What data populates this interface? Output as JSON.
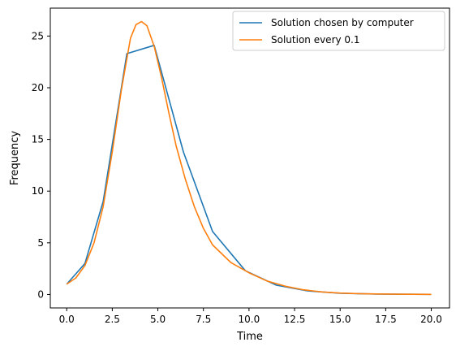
{
  "chart_data": {
    "type": "line",
    "title": "",
    "xlabel": "Time",
    "ylabel": "Frequency",
    "xlim": [
      -0.9,
      21.0
    ],
    "ylim": [
      -1.3,
      27.7
    ],
    "grid": false,
    "legend_position": "top-right",
    "xticks": [
      0.0,
      2.5,
      5.0,
      7.5,
      10.0,
      12.5,
      15.0,
      17.5,
      20.0
    ],
    "xtick_labels": [
      "0.0",
      "2.5",
      "5.0",
      "7.5",
      "10.0",
      "12.5",
      "15.0",
      "17.5",
      "20.0"
    ],
    "yticks": [
      0,
      5,
      10,
      15,
      20,
      25
    ],
    "ytick_labels": [
      "0",
      "5",
      "10",
      "15",
      "20",
      "25"
    ],
    "series": [
      {
        "name": "Solution chosen by computer",
        "color": "#1f77b4",
        "x": [
          0.0,
          0.2,
          0.6,
          1.0,
          2.0,
          3.3,
          4.8,
          6.4,
          8.0,
          9.8,
          11.5,
          13.2,
          15.0,
          17.0,
          20.0
        ],
        "y": [
          1.0,
          1.4,
          2.2,
          3.0,
          9.0,
          23.3,
          24.1,
          13.8,
          6.1,
          2.3,
          0.9,
          0.35,
          0.12,
          0.04,
          0.01
        ]
      },
      {
        "name": "Solution every 0.1",
        "color": "#ff7f0e",
        "x": [
          0.0,
          0.5,
          1.0,
          1.5,
          2.0,
          2.5,
          3.0,
          3.5,
          3.8,
          4.1,
          4.4,
          4.8,
          5.2,
          5.6,
          6.0,
          6.5,
          7.0,
          7.5,
          8.0,
          9.0,
          10.0,
          11.0,
          12.0,
          13.0,
          14.0,
          15.0,
          16.0,
          17.0,
          18.0,
          19.0,
          20.0
        ],
        "y": [
          1.0,
          1.6,
          2.8,
          5.0,
          8.5,
          13.8,
          19.8,
          24.8,
          26.1,
          26.4,
          26.0,
          24.0,
          21.0,
          17.6,
          14.4,
          11.2,
          8.5,
          6.4,
          4.8,
          3.1,
          2.1,
          1.3,
          0.8,
          0.45,
          0.25,
          0.14,
          0.08,
          0.05,
          0.03,
          0.02,
          0.01
        ]
      }
    ]
  }
}
